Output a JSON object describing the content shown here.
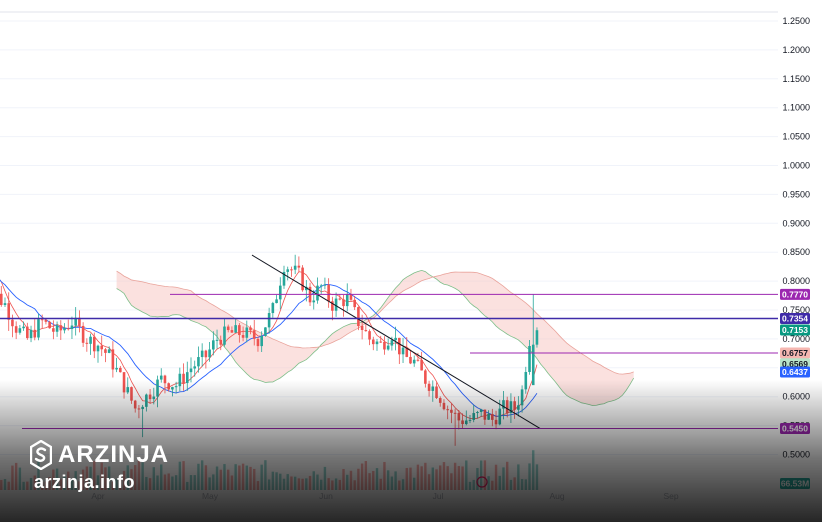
{
  "chart_data": {
    "type": "candlestick",
    "y_axis": {
      "ticks": [
        "1.2500",
        "1.2000",
        "1.1500",
        "1.1000",
        "1.0500",
        "1.0000",
        "0.9500",
        "0.9000",
        "0.8500",
        "0.8000",
        "0.7500",
        "0.7000",
        "0.6500",
        "0.6000",
        "0.5500",
        "0.5000"
      ],
      "range": [
        0.47,
        1.27
      ]
    },
    "x_axis": {
      "months": [
        "Apr",
        "May",
        "Jun",
        "Jul",
        "Aug",
        "Sep"
      ]
    },
    "horizontal_levels": [
      {
        "value": 0.777,
        "label": "0.7770",
        "color": "#9c27b0"
      },
      {
        "value": 0.7354,
        "label": "0.7354",
        "color": "#3f2ba8"
      },
      {
        "value": 0.6757,
        "label": "0.6757",
        "color": "#9c27b0"
      },
      {
        "value": 0.545,
        "label": "0.5450",
        "color": "#9c27b0"
      }
    ],
    "price_tags": [
      {
        "value": 0.7153,
        "label": "0.7153",
        "color": "#089981"
      },
      {
        "value": 0.6569,
        "label": "0.6569",
        "color": "#b9e4c9"
      },
      {
        "value": 0.6437,
        "label": "0.6437",
        "color": "#2962ff"
      },
      {
        "value": 0.6757,
        "label": "0.6757",
        "color": "#f5b7b1"
      }
    ],
    "volume_tag": {
      "label": "66.53M",
      "color": "#26a69a"
    },
    "trendline": {
      "start": {
        "date": "May 6",
        "value": 0.845
      },
      "end": {
        "date": "Jul 27",
        "value": 0.545
      }
    },
    "candles_description": "daily OHLC candles from ~Mar 1 to ~Jul 13",
    "indicators": [
      "Ichimoku cloud",
      "conversion line (red)",
      "base line (blue)",
      "volume"
    ]
  },
  "watermark": {
    "brand": "ARZINJA",
    "site": "arzinja.info"
  },
  "colors": {
    "up": "#26a69a",
    "down": "#ef5350",
    "cloud_bull": "#b9e4c9",
    "cloud_bear": "#f8c9c4"
  }
}
